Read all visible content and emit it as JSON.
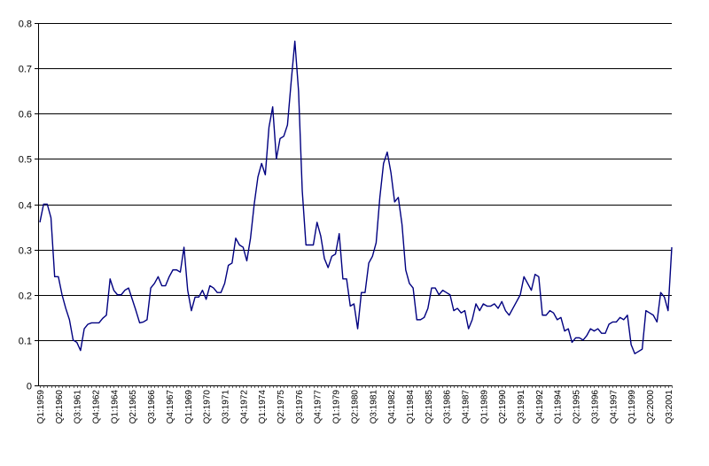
{
  "chart_data": {
    "type": "line",
    "title": "",
    "xlabel": "",
    "ylabel": "",
    "ylim": [
      0,
      0.8
    ],
    "yticks": [
      0,
      0.1,
      0.2,
      0.3,
      0.4,
      0.5,
      0.6,
      0.7,
      0.8
    ],
    "ytick_labels": [
      "0",
      "0.1",
      "0.2",
      "0.3",
      "0.4",
      "0.5",
      "0.6",
      "0.7",
      "0.8"
    ],
    "grid": "horizontal",
    "legend": "none",
    "line_color": "#000080",
    "start_period": "Q1:1959",
    "x_tick_labels": [
      "Q1:1959",
      "Q2:1960",
      "Q3:1961",
      "Q4:1962",
      "Q1:1964",
      "Q2:1965",
      "Q3:1966",
      "Q4:1967",
      "Q1:1969",
      "Q2:1970",
      "Q3:1971",
      "Q4:1972",
      "Q1:1974",
      "Q2:1975",
      "Q3:1976",
      "Q4:1977",
      "Q1:1979",
      "Q2:1980",
      "Q3:1981",
      "Q4:1982",
      "Q1:1984",
      "Q2:1985",
      "Q3:1986",
      "Q4:1987",
      "Q1:1989",
      "Q2:1990",
      "Q3:1991",
      "Q4:1992",
      "Q1:1994",
      "Q2:1995",
      "Q3:1996",
      "Q4:1997",
      "Q1:1999",
      "Q2:2000",
      "Q3:2001"
    ],
    "series": [
      {
        "values": [
          0.36,
          0.4,
          0.4,
          0.37,
          0.24,
          0.24,
          0.2,
          0.17,
          0.145,
          0.1,
          0.095,
          0.077,
          0.125,
          0.135,
          0.138,
          0.138,
          0.138,
          0.148,
          0.155,
          0.235,
          0.21,
          0.2,
          0.2,
          0.21,
          0.215,
          0.19,
          0.165,
          0.138,
          0.14,
          0.145,
          0.215,
          0.225,
          0.24,
          0.22,
          0.22,
          0.24,
          0.255,
          0.255,
          0.25,
          0.305,
          0.21,
          0.165,
          0.195,
          0.195,
          0.21,
          0.19,
          0.22,
          0.215,
          0.205,
          0.205,
          0.225,
          0.265,
          0.27,
          0.325,
          0.31,
          0.305,
          0.275,
          0.325,
          0.4,
          0.46,
          0.49,
          0.465,
          0.57,
          0.615,
          0.5,
          0.545,
          0.55,
          0.575,
          0.67,
          0.76,
          0.65,
          0.43,
          0.31,
          0.31,
          0.31,
          0.36,
          0.33,
          0.28,
          0.26,
          0.285,
          0.29,
          0.335,
          0.235,
          0.235,
          0.175,
          0.18,
          0.125,
          0.205,
          0.205,
          0.27,
          0.285,
          0.315,
          0.415,
          0.49,
          0.515,
          0.47,
          0.405,
          0.415,
          0.355,
          0.255,
          0.225,
          0.215,
          0.145,
          0.145,
          0.15,
          0.17,
          0.215,
          0.215,
          0.2,
          0.21,
          0.205,
          0.2,
          0.165,
          0.17,
          0.16,
          0.165,
          0.125,
          0.145,
          0.18,
          0.165,
          0.18,
          0.175,
          0.175,
          0.18,
          0.17,
          0.185,
          0.165,
          0.155,
          0.17,
          0.185,
          0.2,
          0.24,
          0.225,
          0.21,
          0.245,
          0.24,
          0.155,
          0.155,
          0.165,
          0.16,
          0.145,
          0.15,
          0.12,
          0.125,
          0.095,
          0.105,
          0.105,
          0.1,
          0.11,
          0.125,
          0.12,
          0.125,
          0.115,
          0.115,
          0.135,
          0.14,
          0.14,
          0.15,
          0.145,
          0.155,
          0.09,
          0.07,
          0.075,
          0.08,
          0.165,
          0.16,
          0.155,
          0.14,
          0.205,
          0.195,
          0.165,
          0.305
        ]
      }
    ]
  }
}
